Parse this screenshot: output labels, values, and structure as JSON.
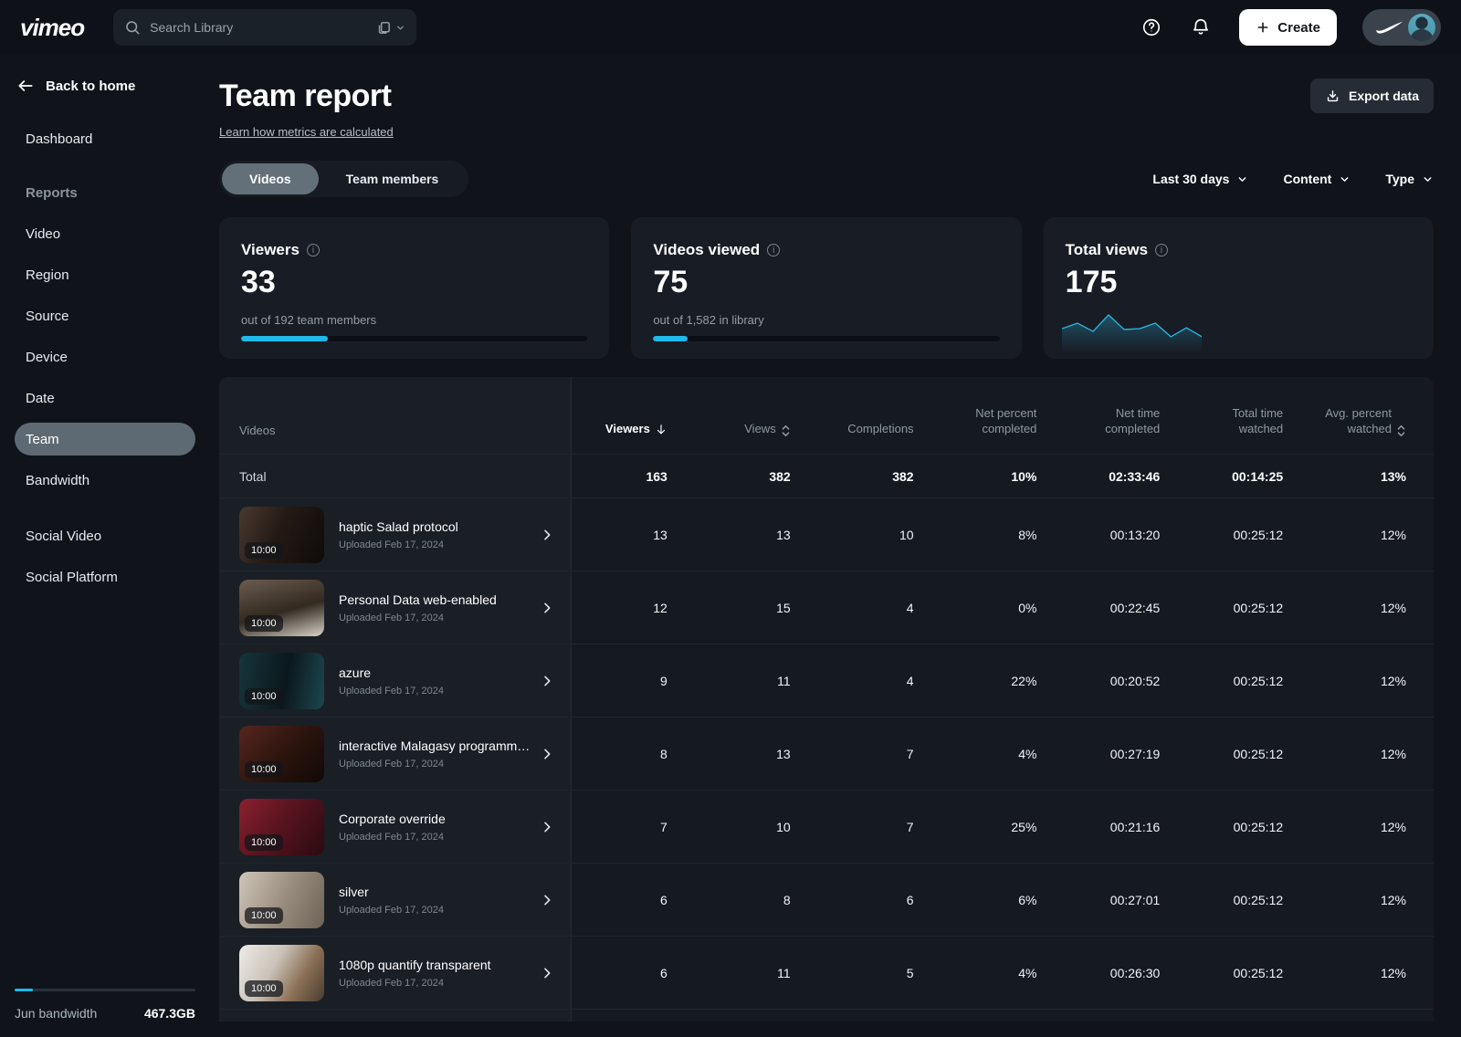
{
  "colors": {
    "accent": "#1fb9ea",
    "spark_line": "#2bb7e5"
  },
  "header": {
    "logo": "vimeo",
    "search_placeholder": "Search Library",
    "create_label": "Create"
  },
  "sidebar": {
    "back_label": "Back to home",
    "items": [
      {
        "label": "Dashboard",
        "type": "item"
      },
      {
        "label": "Reports",
        "type": "section"
      },
      {
        "label": "Video",
        "type": "item"
      },
      {
        "label": "Region",
        "type": "item"
      },
      {
        "label": "Source",
        "type": "item"
      },
      {
        "label": "Device",
        "type": "item"
      },
      {
        "label": "Date",
        "type": "item"
      },
      {
        "label": "Team",
        "type": "item",
        "active": true
      },
      {
        "label": "Bandwidth",
        "type": "item"
      },
      {
        "label": "Social Video",
        "type": "item",
        "gap": true
      },
      {
        "label": "Social Platform",
        "type": "item"
      }
    ],
    "bandwidth_label": "Jun bandwidth",
    "bandwidth_value": "467.3GB",
    "bandwidth_percent": 10
  },
  "page": {
    "title": "Team report",
    "metrics_link": "Learn how metrics are calculated",
    "export_label": "Export data",
    "tabs": [
      {
        "label": "Videos",
        "active": true
      },
      {
        "label": "Team members",
        "active": false
      }
    ],
    "filters": [
      {
        "label": "Last 30 days"
      },
      {
        "label": "Content"
      },
      {
        "label": "Type"
      }
    ]
  },
  "stats": [
    {
      "title": "Viewers",
      "value": "33",
      "subtitle": "out of 192 team members",
      "progress_percent": 25
    },
    {
      "title": "Videos viewed",
      "value": "75",
      "subtitle": "out of 1,582 in library",
      "progress_percent": 10
    },
    {
      "title": "Total views",
      "value": "175"
    }
  ],
  "chart_data": {
    "type": "line",
    "title": "Total views sparkline",
    "x": [
      1,
      2,
      3,
      4,
      5,
      6,
      7,
      8,
      9,
      10
    ],
    "values": [
      22,
      28,
      19,
      37,
      21,
      22,
      28,
      13,
      23,
      13
    ],
    "ylim": [
      0,
      40
    ],
    "grid": false,
    "legend": "none"
  },
  "table": {
    "columns": [
      {
        "label": "Videos",
        "sort": ""
      },
      {
        "label": "Viewers",
        "sort": "desc"
      },
      {
        "label": "Views",
        "sort": "both"
      },
      {
        "label": "Completions",
        "sort": ""
      },
      {
        "label": "Net percent completed",
        "sort": ""
      },
      {
        "label": "Net time completed",
        "sort": ""
      },
      {
        "label": "Total time watched",
        "sort": ""
      },
      {
        "label": "Avg. percent watched",
        "sort": "both"
      }
    ],
    "total": {
      "label": "Total",
      "values": [
        "163",
        "382",
        "382",
        "10%",
        "02:33:46",
        "00:14:25",
        "13%"
      ]
    },
    "rows": [
      {
        "title": "haptic Salad protocol",
        "uploaded": "Uploaded Feb 17, 2024",
        "duration": "10:00",
        "values": [
          "13",
          "13",
          "10",
          "8%",
          "00:13:20",
          "00:25:12",
          "12%"
        ],
        "thumb": "linear-gradient(115deg,#4a3a30 0%,#241a15 45%,#0e0b09 100%)"
      },
      {
        "title": "Personal Data web-enabled",
        "uploaded": "Uploaded Feb 17, 2024",
        "duration": "10:00",
        "values": [
          "12",
          "15",
          "4",
          "0%",
          "00:22:45",
          "00:25:12",
          "12%"
        ],
        "thumb": "linear-gradient(165deg,#6b5c50 0%,#32291f 55%,#d8d2c8 100%)"
      },
      {
        "title": "azure",
        "uploaded": "Uploaded Feb 17, 2024",
        "duration": "10:00",
        "values": [
          "9",
          "11",
          "4",
          "22%",
          "00:20:52",
          "00:25:12",
          "12%"
        ],
        "thumb": "linear-gradient(100deg,#16353c 0%,#0a181c 55%,#1d4750 100%)"
      },
      {
        "title": "interactive Malagasy programmi…",
        "uploaded": "Uploaded Feb 17, 2024",
        "duration": "10:00",
        "values": [
          "8",
          "13",
          "7",
          "4%",
          "00:27:19",
          "00:25:12",
          "12%"
        ],
        "thumb": "linear-gradient(135deg,#55261e 0%,#2a130d 55%,#120807 100%)"
      },
      {
        "title": "Corporate override",
        "uploaded": "Uploaded Feb 17, 2024",
        "duration": "10:00",
        "values": [
          "7",
          "10",
          "7",
          "25%",
          "00:21:16",
          "00:25:12",
          "12%"
        ],
        "thumb": "linear-gradient(125deg,#8c2030 0%,#5a1420 45%,#2a0a10 100%)"
      },
      {
        "title": "silver",
        "uploaded": "Uploaded Feb 17, 2024",
        "duration": "10:00",
        "values": [
          "6",
          "8",
          "6",
          "6%",
          "00:27:01",
          "00:25:12",
          "12%"
        ],
        "thumb": "linear-gradient(115deg,#cfc6ba 0%,#9b8f80 50%,#6e6257 100%)"
      },
      {
        "title": "1080p quantify transparent",
        "uploaded": "Uploaded Feb 17, 2024",
        "duration": "10:00",
        "values": [
          "6",
          "11",
          "5",
          "4%",
          "00:26:30",
          "00:25:12",
          "12%"
        ],
        "thumb": "linear-gradient(120deg,#efece7 0%,#c9c2b8 40%,#8a6f55 70%,#4a3c30 100%)"
      }
    ]
  }
}
